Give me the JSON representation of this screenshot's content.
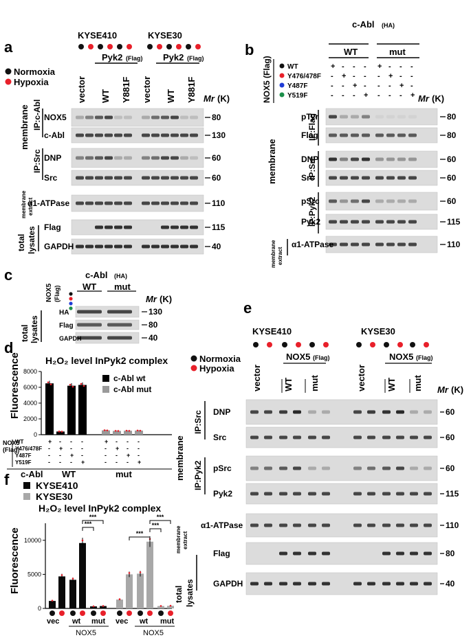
{
  "colors": {
    "normoxia": "#111111",
    "hypoxia": "#e8202a",
    "y487f": "#1f3cd6",
    "y519f": "#1b8f4a",
    "kysea410_bar": "#0a0a0a",
    "kyse30_bar": "#a8a8a8"
  },
  "common": {
    "normoxia": "Normoxia",
    "hypoxia": "Hypoxia",
    "mr": "Mr (K)",
    "cabl": "c-Abl",
    "ha": "(HA)",
    "wt": "WT",
    "mut": "mut",
    "flag": "(Flag)",
    "nox5": "NOX5",
    "nox5_flag": "NOX5 (Flag)",
    "vector": "vector",
    "pyk2": "Pyk2",
    "y881f": "Y881F",
    "kyse410": "KYSE410",
    "kyse30": "KYSE30",
    "membrane": "membrane",
    "membrane_extract1": "membrane",
    "membrane_extract2": "extract",
    "total_lysates1": "total",
    "total_lysates2": "lysates",
    "ip_cabl": "IP:c-Abl",
    "ip_src": "IP:Src",
    "ip_flag": "IP:Flag",
    "ip_pyk2": "IP:Pyk2"
  },
  "panel_a": {
    "letter": "a",
    "rows": [
      {
        "label": "NOX5",
        "mw": "80"
      },
      {
        "label": "c-Abl",
        "mw": "130"
      },
      {
        "label": "DNP",
        "mw": "60"
      },
      {
        "label": "Src",
        "mw": "60"
      },
      {
        "label": "α1-ATPase",
        "mw": "110"
      },
      {
        "label": "Flag",
        "mw": "115"
      },
      {
        "label": "GAPDH",
        "mw": "40"
      }
    ]
  },
  "panel_b": {
    "letter": "b",
    "mutants": [
      "WT",
      "Y476/478F",
      "Y487F",
      "Y519F"
    ],
    "signs": [
      [
        "+",
        "-",
        "-",
        "-",
        "+",
        "-",
        "-",
        "-"
      ],
      [
        "-",
        "+",
        "-",
        "-",
        "-",
        "+",
        "-",
        "-"
      ],
      [
        "-",
        "-",
        "+",
        "-",
        "-",
        "-",
        "+",
        "-"
      ],
      [
        "-",
        "-",
        "-",
        "+",
        "-",
        "-",
        "-",
        "+"
      ]
    ],
    "rows": [
      {
        "label": "pTyr",
        "mw": "80"
      },
      {
        "label": "Flag",
        "mw": "80"
      },
      {
        "label": "DNP",
        "mw": "60"
      },
      {
        "label": "Src",
        "mw": "60"
      },
      {
        "label": "pSrc",
        "mw": "60"
      },
      {
        "label": "Pyk2",
        "mw": "115"
      },
      {
        "label": "α1-ATPase",
        "mw": "110"
      }
    ]
  },
  "panel_c": {
    "letter": "c",
    "rows": [
      {
        "label": "HA",
        "mw": "130"
      },
      {
        "label": "Flag",
        "mw": "80"
      },
      {
        "label": "GAPDH",
        "mw": "40"
      }
    ]
  },
  "panel_d": {
    "letter": "d",
    "title": "H₂O₂ level InPyk2 complex",
    "ylabel": "Fluorescence",
    "mutant_rows": [
      "WT",
      "Y476/478F",
      "Y487F",
      "Y519F"
    ],
    "group_wt": "WT",
    "group_mut": "mut",
    "cabl": "c-Abl",
    "nox5_flag1": "NOX5",
    "nox5_flag2": "(Flag)",
    "legend": [
      "c-Abl wt",
      "c-Abl mut"
    ]
  },
  "panel_f": {
    "letter": "f",
    "title": "H₂O₂ level InPyk2 complex",
    "ylabel": "Fluorescence",
    "legend": [
      "KYSE410",
      "KYSE30"
    ],
    "sig": "***",
    "xgroups": [
      "vec",
      "wt",
      "mut",
      "vec",
      "wt",
      "mut"
    ],
    "nox5": "NOX5"
  },
  "panel_e": {
    "letter": "e",
    "rows": [
      {
        "label": "DNP",
        "mw": "60"
      },
      {
        "label": "Src",
        "mw": "60"
      },
      {
        "label": "pSrc",
        "mw": "60"
      },
      {
        "label": "Pyk2",
        "mw": "115"
      },
      {
        "label": "α1-ATPase",
        "mw": "110"
      },
      {
        "label": "Flag",
        "mw": "80"
      },
      {
        "label": "GAPDH",
        "mw": "40"
      }
    ]
  },
  "chart_data": [
    {
      "type": "bar",
      "title": "H₂O₂ level InPyk2 complex",
      "ylabel": "Fluorescence",
      "ylim": [
        0,
        8000
      ],
      "yticks": [
        0,
        2000,
        4000,
        6000,
        8000
      ],
      "categories": [
        "WT",
        "Y476/478F",
        "Y487F",
        "Y519F",
        "WT",
        "Y476/478F",
        "Y487F",
        "Y519F"
      ],
      "groups": [
        "WT",
        "mut"
      ],
      "series": [
        {
          "name": "c-Abl wt",
          "values": [
            6500,
            400,
            6200,
            6300,
            null,
            null,
            null,
            null
          ]
        },
        {
          "name": "c-Abl mut",
          "values": [
            null,
            null,
            null,
            null,
            550,
            480,
            500,
            520
          ]
        }
      ]
    },
    {
      "type": "bar",
      "title": "H₂O₂ level InPyk2 complex",
      "ylabel": "Fluorescence",
      "ylim": [
        0,
        12500
      ],
      "yticks": [
        0,
        5000,
        10000
      ],
      "categories": [
        "vec N",
        "vec H",
        "wt N",
        "wt H",
        "mut N",
        "mut H"
      ],
      "series": [
        {
          "name": "KYSE410",
          "values": [
            1100,
            4700,
            4200,
            9600,
            300,
            350
          ]
        },
        {
          "name": "KYSE30",
          "values": [
            1300,
            5000,
            5100,
            9800,
            350,
            380
          ]
        }
      ],
      "significance": "***"
    }
  ]
}
